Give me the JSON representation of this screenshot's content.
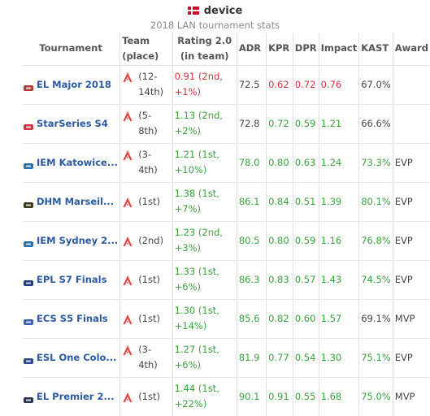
{
  "header": {
    "player": "device",
    "subtitle": "2018 LAN tournament stats"
  },
  "columns": {
    "tournament": "Tournament",
    "team": "Team (place)",
    "rating": "Rating 2.0 (in team)",
    "adr": "ADR",
    "kpr": "KPR",
    "dpr": "DPR",
    "impact": "Impact",
    "kast": "KAST",
    "award": "Award"
  },
  "colors": {
    "good": "#3ba140",
    "bad": "#d0353f",
    "link": "#2c5aa0",
    "team_logo": "#e8423c"
  },
  "rows": [
    {
      "tournament": "EL Major 2018",
      "logo": "major-logo-icon",
      "logo_color": "#b03a3a",
      "place": "(12-14th)",
      "rating": "0.91 (2nd, +1%)",
      "rating_c": "red",
      "adr": "72.5",
      "adr_c": "black",
      "kpr": "0.62",
      "kpr_c": "red",
      "dpr": "0.72",
      "dpr_c": "red",
      "impact": "0.76",
      "impact_c": "red",
      "kast": "67.0%",
      "kast_c": "black",
      "award": ""
    },
    {
      "tournament": "StarSeries S4",
      "logo": "starseries-logo-icon",
      "logo_color": "#d0353f",
      "place": "(5-8th)",
      "rating": "1.13 (2nd, +2%)",
      "rating_c": "green",
      "adr": "72.8",
      "adr_c": "black",
      "kpr": "0.72",
      "kpr_c": "green",
      "dpr": "0.59",
      "dpr_c": "green",
      "impact": "1.21",
      "impact_c": "green",
      "kast": "66.6%",
      "kast_c": "black",
      "award": ""
    },
    {
      "tournament": "IEM Katowice...",
      "logo": "iem-logo-icon",
      "logo_color": "#2f6fa8",
      "place": "(3-4th)",
      "rating": "1.21 (1st, +10%)",
      "rating_c": "green",
      "adr": "78.0",
      "adr_c": "green",
      "kpr": "0.80",
      "kpr_c": "green",
      "dpr": "0.63",
      "dpr_c": "green",
      "impact": "1.24",
      "impact_c": "green",
      "kast": "73.3%",
      "kast_c": "green",
      "award": "EVP"
    },
    {
      "tournament": "DHM Marseil...",
      "logo": "dreamhack-logo-icon",
      "logo_color": "#3a3a1a",
      "place": "(1st)",
      "rating": "1.38 (1st, +7%)",
      "rating_c": "green",
      "adr": "86.1",
      "adr_c": "green",
      "kpr": "0.84",
      "kpr_c": "green",
      "dpr": "0.51",
      "dpr_c": "green",
      "impact": "1.39",
      "impact_c": "green",
      "kast": "80.1%",
      "kast_c": "green",
      "award": "EVP"
    },
    {
      "tournament": "IEM Sydney 2...",
      "logo": "iem-logo-icon",
      "logo_color": "#2f6fa8",
      "place": "(2nd)",
      "rating": "1.23 (2nd, +3%)",
      "rating_c": "green",
      "adr": "80.5",
      "adr_c": "green",
      "kpr": "0.80",
      "kpr_c": "green",
      "dpr": "0.59",
      "dpr_c": "green",
      "impact": "1.16",
      "impact_c": "green",
      "kast": "76.8%",
      "kast_c": "green",
      "award": "EVP"
    },
    {
      "tournament": "EPL S7 Finals",
      "logo": "epl-logo-icon",
      "logo_color": "#1f3f7a",
      "place": "(1st)",
      "rating": "1.33 (1st, +6%)",
      "rating_c": "green",
      "adr": "86.3",
      "adr_c": "green",
      "kpr": "0.83",
      "kpr_c": "green",
      "dpr": "0.57",
      "dpr_c": "green",
      "impact": "1.43",
      "impact_c": "green",
      "kast": "74.5%",
      "kast_c": "green",
      "award": "EVP"
    },
    {
      "tournament": "ECS S5 Finals",
      "logo": "ecs-logo-icon",
      "logo_color": "#3d5fb0",
      "place": "(1st)",
      "rating": "1.30 (1st, +14%)",
      "rating_c": "green",
      "adr": "85.6",
      "adr_c": "green",
      "kpr": "0.82",
      "kpr_c": "green",
      "dpr": "0.60",
      "dpr_c": "green",
      "impact": "1.57",
      "impact_c": "green",
      "kast": "69.1%",
      "kast_c": "black",
      "award": "MVP"
    },
    {
      "tournament": "ESL One Colo...",
      "logo": "esl-logo-icon",
      "logo_color": "#2c4a8a",
      "place": "(3-4th)",
      "rating": "1.27 (1st, +6%)",
      "rating_c": "green",
      "adr": "81.9",
      "adr_c": "green",
      "kpr": "0.77",
      "kpr_c": "green",
      "dpr": "0.54",
      "dpr_c": "green",
      "impact": "1.30",
      "impact_c": "green",
      "kast": "75.1%",
      "kast_c": "green",
      "award": "EVP"
    },
    {
      "tournament": "EL Premier 2...",
      "logo": "el-premier-logo-icon",
      "logo_color": "#2a3350",
      "place": "(1st)",
      "rating": "1.44 (1st, +22%)",
      "rating_c": "green",
      "adr": "90.1",
      "adr_c": "green",
      "kpr": "0.91",
      "kpr_c": "green",
      "dpr": "0.55",
      "dpr_c": "green",
      "impact": "1.68",
      "impact_c": "green",
      "kast": "75.0%",
      "kast_c": "green",
      "award": "MVP"
    }
  ]
}
